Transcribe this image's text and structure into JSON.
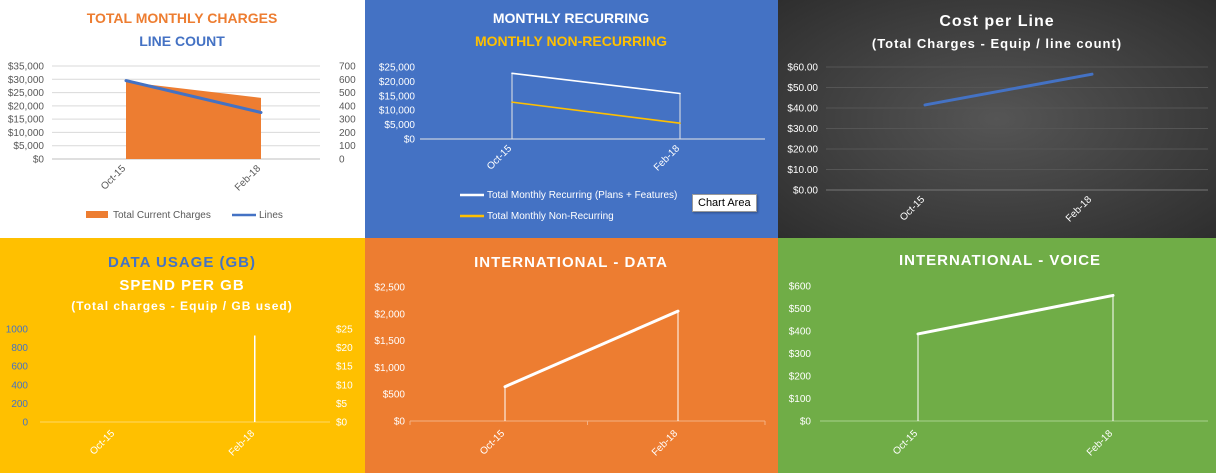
{
  "tooltip": "Chart Area",
  "chart_data": [
    {
      "id": "total-charges",
      "type": "area",
      "title": "TOTAL MONTHLY CHARGES",
      "subtitle": "LINE COUNT",
      "categories": [
        "Oct-15",
        "Feb-18"
      ],
      "series": [
        {
          "name": "Total Current Charges",
          "type": "area",
          "axis": "left",
          "color": "#ed7d31",
          "values": [
            29000,
            23000
          ]
        },
        {
          "name": "Lines",
          "type": "line",
          "axis": "right",
          "color": "#4472c4",
          "values": [
            590,
            350
          ]
        }
      ],
      "y_ticks": [
        "$0",
        "$5,000",
        "$10,000",
        "$15,000",
        "$20,000",
        "$25,000",
        "$30,000",
        "$35,000"
      ],
      "y2_ticks": [
        "0",
        "100",
        "200",
        "300",
        "400",
        "500",
        "600",
        "700"
      ],
      "ylim": [
        0,
        35000
      ],
      "y2lim": [
        0,
        700
      ],
      "legend_position": "bottom"
    },
    {
      "id": "monthly-recurring",
      "type": "line",
      "title": "MONTHLY RECURRING",
      "subtitle": "MONTHLY NON-RECURRING",
      "categories": [
        "Oct-15",
        "Feb-18"
      ],
      "series": [
        {
          "name": "Total Monthly Recurring (Plans + Features)",
          "color": "#ffffff",
          "values": [
            22800,
            15800
          ]
        },
        {
          "name": "Total Monthly Non-Recurring",
          "color": "#ffc000",
          "values": [
            12800,
            5500
          ]
        }
      ],
      "y_ticks": [
        "$0",
        "$5,000",
        "$10,000",
        "$15,000",
        "$20,000",
        "$25,000"
      ],
      "ylim": [
        0,
        25000
      ],
      "legend_position": "bottom"
    },
    {
      "id": "cost-per-line",
      "type": "line",
      "title": "Cost per Line",
      "subtitle": "(Total Charges - Equip / line count)",
      "categories": [
        "Oct-15",
        "Feb-18"
      ],
      "series": [
        {
          "color": "#4472c4",
          "values": [
            41.5,
            56.5
          ]
        }
      ],
      "y_ticks": [
        "$0.00",
        "$10.00",
        "$20.00",
        "$30.00",
        "$40.00",
        "$50.00",
        "$60.00"
      ],
      "ylim": [
        0,
        60
      ]
    },
    {
      "id": "data-usage",
      "type": "bar",
      "title": "DATA USAGE (GB)",
      "subtitle": "SPEND PER GB",
      "subtitle2": "(Total charges - Equip / GB used)",
      "categories": [
        "Oct-15",
        "Feb-18"
      ],
      "series": [
        {
          "color": "#ffffff",
          "values": [
            0,
            930
          ]
        }
      ],
      "y_ticks": [
        "0",
        "200",
        "400",
        "600",
        "800",
        "1000"
      ],
      "y2_ticks": [
        "$0",
        "$5",
        "$10",
        "$15",
        "$20",
        "$25"
      ],
      "ylim": [
        0,
        1000
      ],
      "y2lim": [
        0,
        25
      ]
    },
    {
      "id": "international-data",
      "type": "line",
      "title": "INTERNATIONAL - DATA",
      "categories": [
        "Oct-15",
        "Feb-18"
      ],
      "series": [
        {
          "color": "#ffffff",
          "values": [
            640,
            2050
          ]
        }
      ],
      "y_ticks": [
        "$0",
        "$500",
        "$1,000",
        "$1,500",
        "$2,000",
        "$2,500"
      ],
      "ylim": [
        0,
        2500
      ]
    },
    {
      "id": "international-voice",
      "type": "line",
      "title": "INTERNATIONAL - VOICE",
      "categories": [
        "Oct-15",
        "Feb-18"
      ],
      "series": [
        {
          "color": "#ffffff",
          "values": [
            387,
            558
          ]
        }
      ],
      "y_ticks": [
        "$0",
        "$100",
        "$200",
        "$300",
        "$400",
        "$500",
        "$600"
      ],
      "ylim": [
        0,
        600
      ]
    }
  ]
}
